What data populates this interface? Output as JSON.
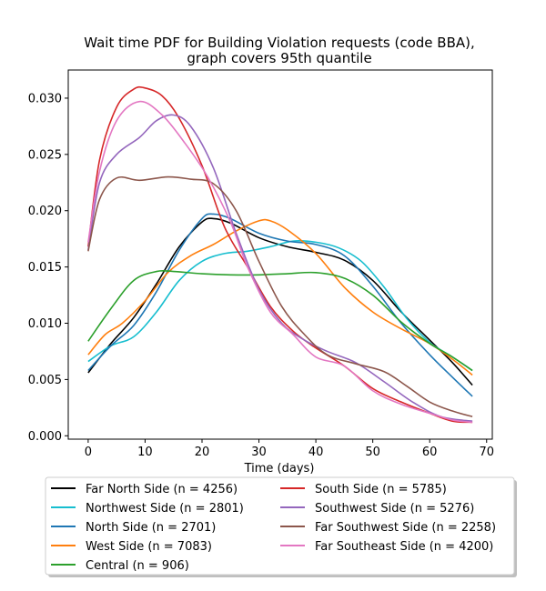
{
  "chart_data": {
    "type": "line",
    "title": "Wait time PDF for Building Violation  requests (code BBA),",
    "subtitle": "graph covers 95th quantile",
    "xlabel": "Time (days)",
    "ylabel": "",
    "xlim": [
      -3.5,
      71
    ],
    "ylim": [
      -0.0003,
      0.0325
    ],
    "xticks": [
      0,
      10,
      20,
      30,
      40,
      50,
      60,
      70
    ],
    "yticks": [
      0.0,
      0.005,
      0.01,
      0.015,
      0.02,
      0.025,
      0.03
    ],
    "ytick_labels": [
      "0.000",
      "0.005",
      "0.010",
      "0.015",
      "0.020",
      "0.025",
      "0.030"
    ],
    "legend_position": "below plot, two columns",
    "series": [
      {
        "name": "Far North Side (n = 4256)",
        "color": "#000000",
        "points": [
          [
            0,
            0.0056
          ],
          [
            4,
            0.0082
          ],
          [
            8,
            0.0105
          ],
          [
            12,
            0.0135
          ],
          [
            16,
            0.0168
          ],
          [
            20,
            0.019
          ],
          [
            22,
            0.0193
          ],
          [
            25,
            0.0189
          ],
          [
            30,
            0.0176
          ],
          [
            35,
            0.0168
          ],
          [
            40,
            0.0163
          ],
          [
            45,
            0.0156
          ],
          [
            50,
            0.0138
          ],
          [
            55,
            0.011
          ],
          [
            60,
            0.0085
          ],
          [
            64,
            0.0065
          ],
          [
            67.5,
            0.0045
          ]
        ]
      },
      {
        "name": "Northwest Side (n = 2801)",
        "color": "#17becf",
        "points": [
          [
            0,
            0.0066
          ],
          [
            4,
            0.008
          ],
          [
            8,
            0.0088
          ],
          [
            12,
            0.011
          ],
          [
            16,
            0.0138
          ],
          [
            20,
            0.0155
          ],
          [
            24,
            0.0162
          ],
          [
            28,
            0.0164
          ],
          [
            32,
            0.0168
          ],
          [
            36,
            0.0173
          ],
          [
            40,
            0.0172
          ],
          [
            44,
            0.0167
          ],
          [
            48,
            0.0155
          ],
          [
            52,
            0.0132
          ],
          [
            56,
            0.0104
          ],
          [
            60,
            0.0083
          ],
          [
            64,
            0.007
          ],
          [
            67.5,
            0.0058
          ]
        ]
      },
      {
        "name": "North Side (n = 2701)",
        "color": "#1f77b4",
        "points": [
          [
            0,
            0.0058
          ],
          [
            4,
            0.008
          ],
          [
            8,
            0.0098
          ],
          [
            12,
            0.0128
          ],
          [
            16,
            0.0165
          ],
          [
            20,
            0.0193
          ],
          [
            22,
            0.0197
          ],
          [
            25,
            0.0193
          ],
          [
            30,
            0.018
          ],
          [
            35,
            0.0173
          ],
          [
            40,
            0.017
          ],
          [
            45,
            0.016
          ],
          [
            50,
            0.0133
          ],
          [
            55,
            0.01
          ],
          [
            60,
            0.0072
          ],
          [
            64,
            0.0052
          ],
          [
            67.5,
            0.0035
          ]
        ]
      },
      {
        "name": "West Side (n = 7083)",
        "color": "#ff7f0e",
        "points": [
          [
            0,
            0.0072
          ],
          [
            3,
            0.009
          ],
          [
            6,
            0.01
          ],
          [
            10,
            0.012
          ],
          [
            14,
            0.0145
          ],
          [
            18,
            0.016
          ],
          [
            22,
            0.017
          ],
          [
            26,
            0.0182
          ],
          [
            30,
            0.0191
          ],
          [
            32,
            0.0191
          ],
          [
            35,
            0.0183
          ],
          [
            40,
            0.0162
          ],
          [
            45,
            0.0132
          ],
          [
            50,
            0.011
          ],
          [
            55,
            0.0095
          ],
          [
            60,
            0.0082
          ],
          [
            64,
            0.0068
          ],
          [
            67.5,
            0.0054
          ]
        ]
      },
      {
        "name": "Central (n = 906)",
        "color": "#2ca02c",
        "points": [
          [
            0,
            0.0084
          ],
          [
            4,
            0.0113
          ],
          [
            8,
            0.0138
          ],
          [
            12,
            0.0146
          ],
          [
            15,
            0.0146
          ],
          [
            20,
            0.0144
          ],
          [
            25,
            0.0143
          ],
          [
            30,
            0.0143
          ],
          [
            35,
            0.0144
          ],
          [
            40,
            0.0145
          ],
          [
            45,
            0.014
          ],
          [
            50,
            0.0125
          ],
          [
            55,
            0.0101
          ],
          [
            60,
            0.0082
          ],
          [
            64,
            0.007
          ],
          [
            67.5,
            0.0058
          ]
        ]
      },
      {
        "name": "South Side (n = 5785)",
        "color": "#d62728",
        "points": [
          [
            0,
            0.0168
          ],
          [
            2,
            0.0245
          ],
          [
            5,
            0.0292
          ],
          [
            8,
            0.0308
          ],
          [
            10,
            0.0309
          ],
          [
            13,
            0.0302
          ],
          [
            16,
            0.0282
          ],
          [
            20,
            0.024
          ],
          [
            24,
            0.0185
          ],
          [
            28,
            0.015
          ],
          [
            32,
            0.0115
          ],
          [
            36,
            0.0093
          ],
          [
            40,
            0.0078
          ],
          [
            45,
            0.0062
          ],
          [
            50,
            0.0042
          ],
          [
            55,
            0.003
          ],
          [
            60,
            0.002
          ],
          [
            64,
            0.0013
          ],
          [
            67.5,
            0.0012
          ]
        ]
      },
      {
        "name": "Southwest Side (n = 5276)",
        "color": "#9467bd",
        "points": [
          [
            0,
            0.0165
          ],
          [
            2,
            0.0225
          ],
          [
            5,
            0.025
          ],
          [
            9,
            0.0265
          ],
          [
            12,
            0.028
          ],
          [
            15,
            0.0285
          ],
          [
            18,
            0.0275
          ],
          [
            22,
            0.0238
          ],
          [
            26,
            0.018
          ],
          [
            30,
            0.013
          ],
          [
            34,
            0.01
          ],
          [
            38,
            0.0085
          ],
          [
            42,
            0.0075
          ],
          [
            47,
            0.0065
          ],
          [
            52,
            0.0048
          ],
          [
            57,
            0.003
          ],
          [
            62,
            0.0017
          ],
          [
            67.5,
            0.0013
          ]
        ]
      },
      {
        "name": "Far Southwest Side (n = 2258)",
        "color": "#8c564b",
        "points": [
          [
            0,
            0.0164
          ],
          [
            2,
            0.021
          ],
          [
            5,
            0.0229
          ],
          [
            9,
            0.0227
          ],
          [
            14,
            0.023
          ],
          [
            18,
            0.0228
          ],
          [
            22,
            0.0224
          ],
          [
            26,
            0.02
          ],
          [
            30,
            0.0155
          ],
          [
            34,
            0.0115
          ],
          [
            38,
            0.009
          ],
          [
            42,
            0.0072
          ],
          [
            47,
            0.0064
          ],
          [
            52,
            0.0057
          ],
          [
            56,
            0.0044
          ],
          [
            60,
            0.003
          ],
          [
            64,
            0.0022
          ],
          [
            67.5,
            0.0017
          ]
        ]
      },
      {
        "name": "Far Southeast Side (n = 4200)",
        "color": "#e377c2",
        "points": [
          [
            0,
            0.0172
          ],
          [
            2,
            0.0235
          ],
          [
            5,
            0.028
          ],
          [
            9,
            0.0297
          ],
          [
            13,
            0.0285
          ],
          [
            17,
            0.026
          ],
          [
            21,
            0.023
          ],
          [
            25,
            0.019
          ],
          [
            28,
            0.015
          ],
          [
            32,
            0.011
          ],
          [
            36,
            0.009
          ],
          [
            40,
            0.007
          ],
          [
            45,
            0.0062
          ],
          [
            50,
            0.004
          ],
          [
            55,
            0.0028
          ],
          [
            60,
            0.002
          ],
          [
            64,
            0.0014
          ],
          [
            67.5,
            0.0012
          ]
        ]
      }
    ]
  }
}
